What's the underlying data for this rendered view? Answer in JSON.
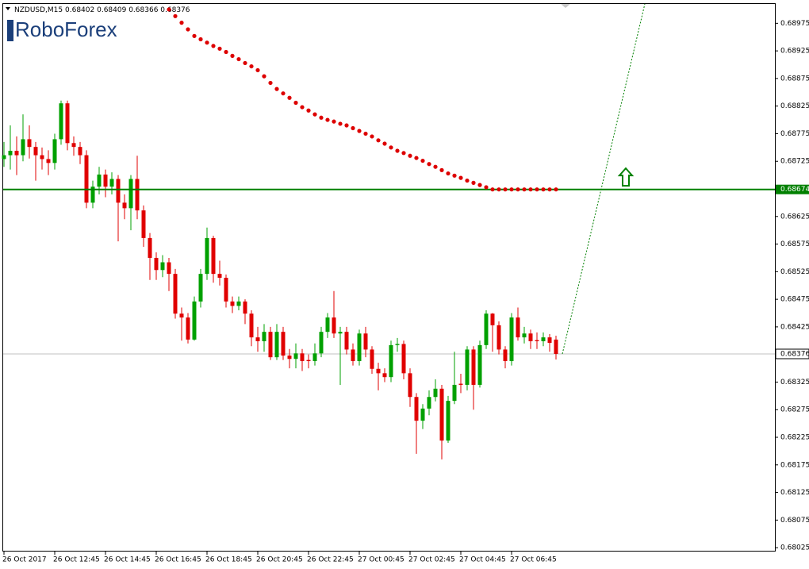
{
  "chart_data": {
    "type": "candlestick",
    "symbol": "NZDUSD,M15",
    "logo": "RoboForex",
    "ylim": [
      0.68018,
      0.6901
    ],
    "yticks": [
      0.68975,
      0.68925,
      0.68875,
      0.68825,
      0.68775,
      0.68725,
      0.68625,
      0.68575,
      0.68525,
      0.68475,
      0.68425,
      0.68325,
      0.68275,
      0.68225,
      0.68175,
      0.68125,
      0.68075,
      0.68025
    ],
    "categories": [
      "26 Oct 2017",
      null,
      null,
      null,
      null,
      null,
      null,
      null,
      "26 Oct 12:45",
      null,
      null,
      null,
      null,
      null,
      null,
      null,
      "26 Oct 14:45",
      null,
      null,
      null,
      null,
      null,
      null,
      null,
      "26 Oct 16:45",
      null,
      null,
      null,
      null,
      null,
      null,
      null,
      "26 Oct 18:45",
      null,
      null,
      null,
      null,
      null,
      null,
      null,
      "26 Oct 20:45",
      null,
      null,
      null,
      null,
      null,
      null,
      null,
      "26 Oct 22:45",
      null,
      null,
      null,
      null,
      null,
      null,
      null,
      "27 Oct 00:45",
      null,
      null,
      null,
      null,
      null,
      null,
      null,
      "27 Oct 02:45",
      null,
      null,
      null,
      null,
      null,
      null,
      null,
      "27 Oct 04:45",
      null,
      null,
      null,
      null,
      null,
      null,
      null,
      "27 Oct 06:45",
      null,
      null,
      null,
      null,
      null,
      null,
      null
    ],
    "candles": {
      "up_color": "#00a000",
      "down_color": "#e00000",
      "open": [
        0.68729,
        0.68736,
        0.68744,
        0.68736,
        0.68765,
        0.68751,
        0.68736,
        0.68729,
        0.68722,
        0.68765,
        0.6883,
        0.68758,
        0.68751,
        0.68736,
        0.6865,
        0.68679,
        0.68701,
        0.68679,
        0.68693,
        0.6865,
        0.6864,
        0.68693,
        0.68636,
        0.68586,
        0.6855,
        0.68528,
        0.68542,
        0.68521,
        0.68449,
        0.68442,
        0.68402,
        0.68471,
        0.68521,
        0.68586,
        0.68521,
        0.68514,
        0.68471,
        0.68463,
        0.68471,
        0.68449,
        0.68406,
        0.68399,
        0.68416,
        0.6837,
        0.68416,
        0.68373,
        0.68367,
        0.68377,
        0.68365,
        0.68363,
        0.68377,
        0.68416,
        0.68442,
        0.68413,
        0.68416,
        0.68384,
        0.68363,
        0.68413,
        0.68384,
        0.68349,
        0.68341,
        0.68334,
        0.68392,
        0.68394,
        0.68341,
        0.68298,
        0.68255,
        0.68277,
        0.68298,
        0.68313,
        0.68219,
        0.68291,
        0.68322,
        0.6832,
        0.68384,
        0.6832,
        0.68392,
        0.68449,
        0.68428,
        0.68384,
        0.68363,
        0.68442,
        0.68406,
        0.68413,
        0.68401,
        0.68399,
        0.68406,
        0.68402
      ],
      "high": [
        0.6876,
        0.6879,
        0.6877,
        0.6881,
        0.6879,
        0.6876,
        0.6875,
        0.68745,
        0.68775,
        0.68835,
        0.68835,
        0.6877,
        0.6876,
        0.68745,
        0.6869,
        0.68715,
        0.6871,
        0.68705,
        0.687,
        0.68665,
        0.687,
        0.68735,
        0.68645,
        0.68595,
        0.6856,
        0.68555,
        0.6855,
        0.6853,
        0.6846,
        0.6845,
        0.6848,
        0.6853,
        0.68605,
        0.6859,
        0.68545,
        0.6852,
        0.6848,
        0.6848,
        0.68475,
        0.68455,
        0.68425,
        0.6843,
        0.68425,
        0.6843,
        0.68425,
        0.68385,
        0.68395,
        0.68385,
        0.68375,
        0.68395,
        0.68425,
        0.6845,
        0.6849,
        0.68425,
        0.68425,
        0.68395,
        0.6842,
        0.68425,
        0.6839,
        0.6836,
        0.6835,
        0.684,
        0.68405,
        0.684,
        0.6835,
        0.68305,
        0.68285,
        0.6831,
        0.6833,
        0.6832,
        0.683,
        0.6838,
        0.6834,
        0.6839,
        0.6839,
        0.684,
        0.68455,
        0.6845,
        0.68435,
        0.6839,
        0.6845,
        0.6846,
        0.68425,
        0.6842,
        0.68415,
        0.68415,
        0.68412,
        0.68409
      ],
      "low": [
        0.68715,
        0.6871,
        0.687,
        0.68725,
        0.6873,
        0.6869,
        0.6871,
        0.687,
        0.6871,
        0.68755,
        0.68745,
        0.68735,
        0.6872,
        0.6864,
        0.6864,
        0.68665,
        0.6866,
        0.68665,
        0.6858,
        0.6862,
        0.686,
        0.6862,
        0.6857,
        0.6851,
        0.6851,
        0.68515,
        0.6849,
        0.6844,
        0.684,
        0.68395,
        0.684,
        0.6846,
        0.6851,
        0.68505,
        0.685,
        0.6846,
        0.6845,
        0.68455,
        0.6843,
        0.6839,
        0.6838,
        0.6838,
        0.68365,
        0.68365,
        0.68365,
        0.6835,
        0.6835,
        0.68345,
        0.6835,
        0.68355,
        0.6837,
        0.68405,
        0.68405,
        0.6832,
        0.68375,
        0.68355,
        0.68355,
        0.6837,
        0.6834,
        0.6831,
        0.68325,
        0.68325,
        0.6838,
        0.6833,
        0.6828,
        0.68195,
        0.6824,
        0.68265,
        0.6829,
        0.68185,
        0.68215,
        0.68285,
        0.68305,
        0.6831,
        0.68275,
        0.68315,
        0.68385,
        0.6838,
        0.68375,
        0.6835,
        0.68355,
        0.684,
        0.68395,
        0.68385,
        0.68385,
        0.6839,
        0.6838,
        0.68366
      ],
      "close": [
        0.68736,
        0.68744,
        0.68736,
        0.68765,
        0.68751,
        0.68736,
        0.68729,
        0.68722,
        0.68765,
        0.6883,
        0.68758,
        0.68751,
        0.68736,
        0.6865,
        0.68679,
        0.68701,
        0.68679,
        0.68693,
        0.6865,
        0.6864,
        0.68693,
        0.68636,
        0.68586,
        0.6855,
        0.68528,
        0.68542,
        0.68521,
        0.68449,
        0.68442,
        0.68402,
        0.68471,
        0.68521,
        0.68586,
        0.68521,
        0.68514,
        0.68471,
        0.68463,
        0.68471,
        0.68449,
        0.68406,
        0.68399,
        0.68416,
        0.6837,
        0.68416,
        0.68373,
        0.68367,
        0.68377,
        0.68363,
        0.68363,
        0.68377,
        0.68416,
        0.68442,
        0.68413,
        0.68416,
        0.68384,
        0.68363,
        0.68413,
        0.68384,
        0.68349,
        0.68341,
        0.68334,
        0.68392,
        0.68394,
        0.68341,
        0.68298,
        0.68255,
        0.68277,
        0.68298,
        0.68313,
        0.68219,
        0.68291,
        0.6832,
        0.6832,
        0.68384,
        0.6832,
        0.68392,
        0.68449,
        0.68428,
        0.68384,
        0.68363,
        0.68442,
        0.68406,
        0.68413,
        0.68399,
        0.68399,
        0.68406,
        0.68396,
        0.68376
      ]
    },
    "sar": {
      "color": "#dd0000",
      "values": [
        null,
        null,
        null,
        null,
        null,
        null,
        null,
        null,
        null,
        null,
        null,
        null,
        null,
        null,
        null,
        null,
        null,
        null,
        null,
        null,
        null,
        null,
        null,
        null,
        null,
        null,
        0.69,
        0.68988,
        0.68976,
        0.68964,
        0.68952,
        0.68946,
        0.6894,
        0.68934,
        0.68929,
        0.68923,
        0.68916,
        0.6891,
        0.68903,
        0.68897,
        0.6889,
        0.68879,
        0.68867,
        0.68856,
        0.68848,
        0.6884,
        0.68831,
        0.68823,
        0.68817,
        0.6881,
        0.68804,
        0.688,
        0.68797,
        0.68793,
        0.6879,
        0.68785,
        0.6878,
        0.68775,
        0.6877,
        0.68763,
        0.68757,
        0.6875,
        0.68744,
        0.6874,
        0.68735,
        0.68731,
        0.68726,
        0.6872,
        0.68715,
        0.68709,
        0.68703,
        0.68699,
        0.68695,
        0.6869,
        0.68686,
        0.68682,
        0.68678,
        0.68674,
        0.68674,
        0.68674,
        0.68674,
        0.68674,
        0.68674,
        0.68674,
        0.68674,
        0.68674,
        0.68674,
        0.68674
      ]
    },
    "level": {
      "value": 0.68674,
      "color": "#008000"
    },
    "price_line": {
      "value": 0.68376,
      "color": "#c0c0c0"
    },
    "forecast": {
      "x": [
        88,
        101
      ],
      "values": [
        0.68376,
        0.6901
      ],
      "color": "#008000"
    },
    "arrow": {
      "x": 98,
      "value": 0.68695,
      "color": "#008000"
    }
  }
}
